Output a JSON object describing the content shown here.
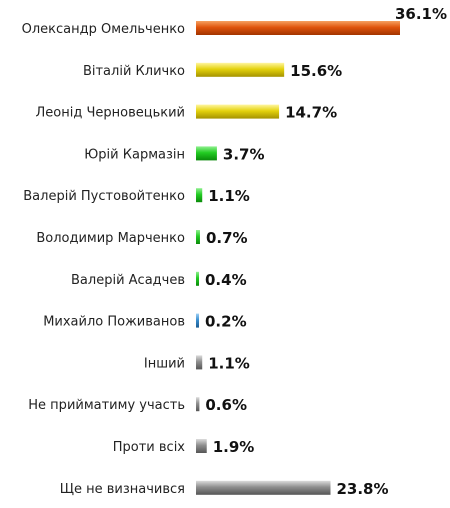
{
  "chart_data": {
    "type": "bar",
    "orientation": "horizontal",
    "title": "",
    "xlabel": "",
    "ylabel": "",
    "grid": false,
    "legend": "none",
    "categories": [
      "Олександр Омельченко",
      "Віталій Кличко",
      "Леонід Черновецький",
      "Юрій Кармазін",
      "Валерій Пустовойтенко",
      "Володимир Марченко",
      "Валерій Асадчев",
      "Михайло Поживанов",
      "Інший",
      "Не прийматиму  участь",
      "Проти всіх",
      "Ще не визначився"
    ],
    "values": [
      36.1,
      15.6,
      14.7,
      3.7,
      1.1,
      0.7,
      0.4,
      0.2,
      1.1,
      0.6,
      1.9,
      23.8
    ],
    "value_labels": [
      "36.1%",
      "15.6%",
      "14.7%",
      "3.7%",
      "1.1%",
      "0.7%",
      "0.4%",
      "0.2%",
      "1.1%",
      "0.6%",
      "1.9%",
      "23.8%"
    ],
    "bar_colors": [
      "#e0540c",
      "#e4d20c",
      "#e4d20c",
      "#22cc22",
      "#22cc22",
      "#22cc22",
      "#22cc22",
      "#3a8fd0",
      "#8e8e8e",
      "#8e8e8e",
      "#8e8e8e",
      "#8e8e8e"
    ]
  }
}
